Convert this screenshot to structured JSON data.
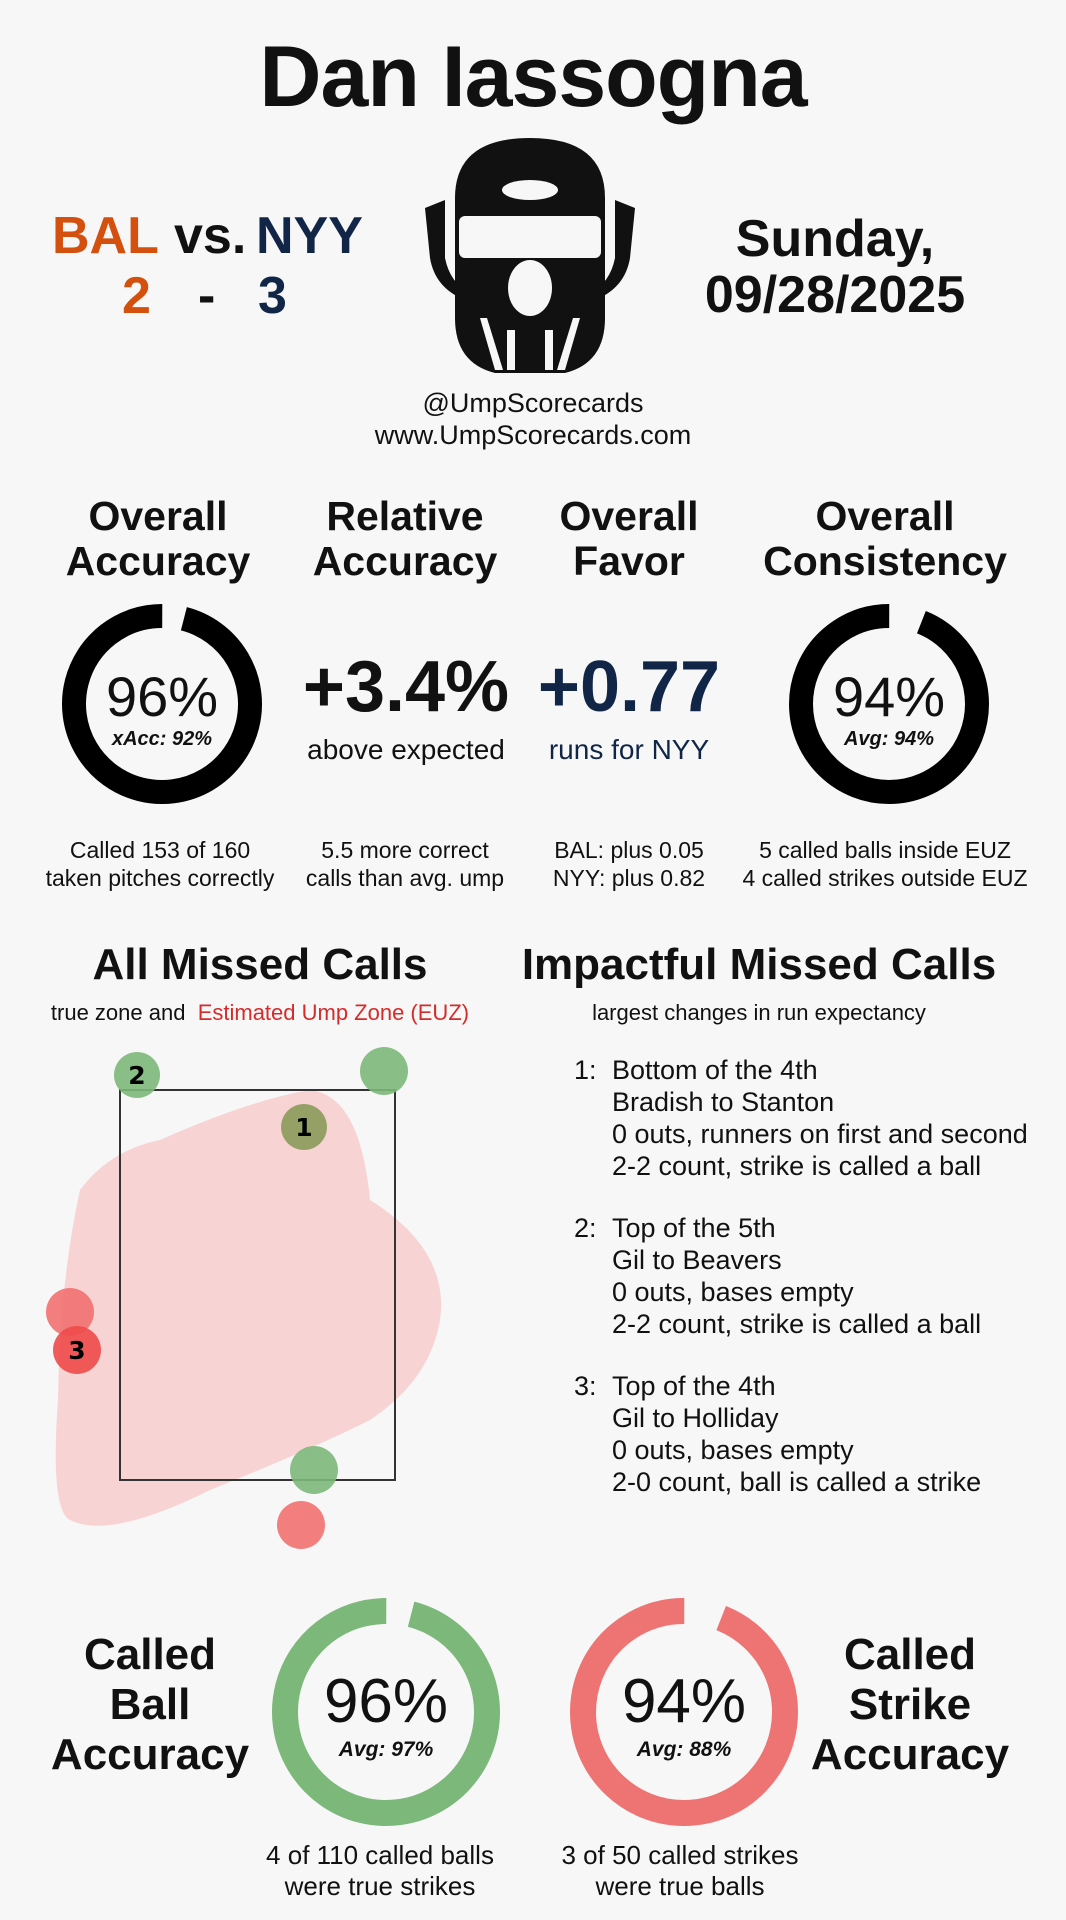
{
  "header": {
    "umpire_name": "Dan Iassogna",
    "away_team": "BAL",
    "vs": "vs.",
    "home_team": "NYY",
    "away_score": "2",
    "dash": "-",
    "home_score": "3",
    "day": "Sunday,",
    "date": "09/28/2025",
    "handle": "@UmpScorecards",
    "website": "www.UmpScorecards.com",
    "icon": "umpire-mask-icon"
  },
  "colors": {
    "away": "#d4500f",
    "home": "#112647",
    "ball_green": "#7cb87a",
    "strike_red": "#ee7474",
    "euz_fill": "#f8cccc",
    "euz_label": "#d52b2b"
  },
  "stats": {
    "overall_accuracy": {
      "title_line1": "Overall",
      "title_line2": "Accuracy",
      "value": "96%",
      "fraction": 0.96,
      "sub": "xAcc: 92%",
      "note_line1": "Called 153 of 160",
      "note_line2": "taken pitches correctly"
    },
    "relative_accuracy": {
      "title_line1": "Relative",
      "title_line2": "Accuracy",
      "value": "+3.4%",
      "sub": "above expected",
      "note_line1": "5.5 more correct",
      "note_line2": "calls than avg. ump"
    },
    "overall_favor": {
      "title_line1": "Overall",
      "title_line2": "Favor",
      "value": "+0.77",
      "sub": "runs for NYY",
      "note_line1": "BAL: plus 0.05",
      "note_line2": "NYY: plus 0.82"
    },
    "overall_consistency": {
      "title_line1": "Overall",
      "title_line2": "Consistency",
      "value": "94%",
      "fraction": 0.94,
      "sub": "Avg: 94%",
      "note_line1": "5 called balls inside EUZ",
      "note_line2": "4 called strikes outside EUZ"
    }
  },
  "missed_calls": {
    "title": "All Missed Calls",
    "legend_prefix": "true zone and",
    "legend_euz": "Estimated Ump Zone (EUZ)",
    "pitch_labels": [
      "1",
      "2",
      "3"
    ]
  },
  "impactful": {
    "title": "Impactful Missed Calls",
    "subtitle": "largest changes in run expectancy",
    "items": [
      {
        "num": "1:",
        "line1": "Bottom of the 4th",
        "line2": "Bradish to Stanton",
        "line3": "0 outs, runners on first and second",
        "line4": "2-2 count, strike is called a ball"
      },
      {
        "num": "2:",
        "line1": "Top of the 5th",
        "line2": "Gil to Beavers",
        "line3": "0 outs, bases empty",
        "line4": "2-2 count, strike is called a ball"
      },
      {
        "num": "3:",
        "line1": "Top of the 4th",
        "line2": "Gil to Holliday",
        "line3": "0 outs, bases empty",
        "line4": "2-0 count, ball is called a strike"
      }
    ]
  },
  "called_ball": {
    "title_line1": "Called",
    "title_line2": "Ball",
    "title_line3": "Accuracy",
    "value": "96%",
    "fraction": 0.96,
    "sub": "Avg: 97%",
    "note_line1": "4 of 110 called balls",
    "note_line2": "were true strikes"
  },
  "called_strike": {
    "title_line1": "Called",
    "title_line2": "Strike",
    "title_line3": "Accuracy",
    "value": "94%",
    "fraction": 0.94,
    "sub": "Avg: 88%",
    "note_line1": "3 of 50 called strikes",
    "note_line2": "were true balls"
  }
}
